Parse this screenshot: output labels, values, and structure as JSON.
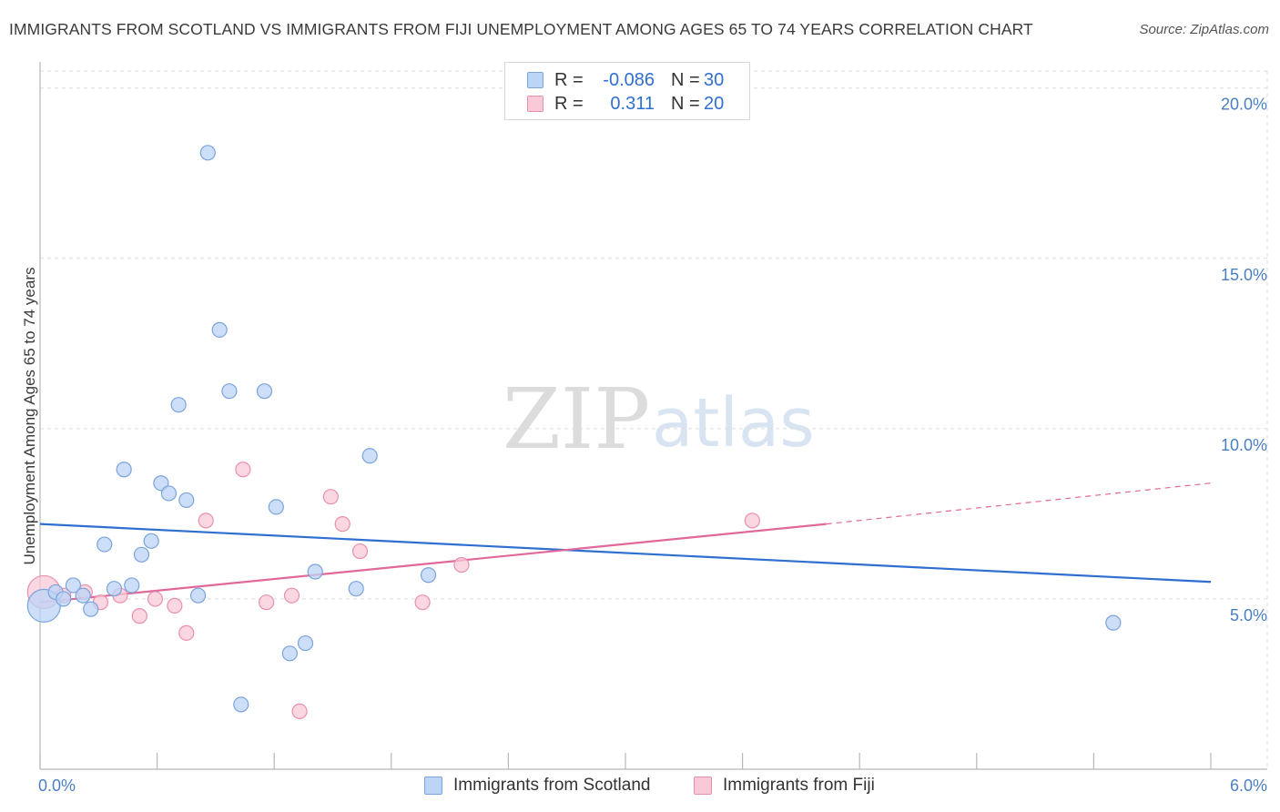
{
  "title": "IMMIGRANTS FROM SCOTLAND VS IMMIGRANTS FROM FIJI UNEMPLOYMENT AMONG AGES 65 TO 74 YEARS CORRELATION CHART",
  "source": "Source: ZipAtlas.com",
  "watermark": {
    "zip": "ZIP",
    "atlas": "atlas"
  },
  "legend": {
    "rows": [
      {
        "r_label": "R =",
        "r_value": "-0.086",
        "n_label": "N =",
        "n_value": "30"
      },
      {
        "r_label": "R =",
        "r_value": "0.311",
        "n_label": "N =",
        "n_value": "20"
      }
    ]
  },
  "bottom_legend": {
    "scotland": "Immigrants from Scotland",
    "fiji": "Immigrants from Fiji"
  },
  "colors": {
    "scotland_fill": "#bcd4f5",
    "scotland_stroke": "#7aa3dc",
    "scotland_line": "#2f6fd0",
    "fiji_fill": "#f9c9d8",
    "fiji_stroke": "#e88fae",
    "fiji_line": "#e0689a",
    "tick_label": "#4a7fc4",
    "grid": "#dcdcdc"
  },
  "chart_data": {
    "type": "scatter",
    "title": "IMMIGRANTS FROM SCOTLAND VS IMMIGRANTS FROM FIJI UNEMPLOYMENT AMONG AGES 65 TO 74 YEARS CORRELATION CHART",
    "xlabel": "",
    "ylabel": "Unemployment Among Ages 65 to 74 years",
    "xlim": [
      0,
      6.0
    ],
    "ylim": [
      0,
      20.5
    ],
    "x_tick_labels": [
      "0.0%",
      "6.0%"
    ],
    "y_ticks": [
      5,
      10,
      15,
      20
    ],
    "y_tick_labels": [
      "5.0%",
      "10.0%",
      "15.0%",
      "20.0%"
    ],
    "series": [
      {
        "name": "Immigrants from Scotland",
        "r": -0.086,
        "n": 30,
        "points": [
          {
            "x": 0.02,
            "y": 4.8,
            "big": true
          },
          {
            "x": 0.08,
            "y": 5.2
          },
          {
            "x": 0.12,
            "y": 5.0
          },
          {
            "x": 0.17,
            "y": 5.4
          },
          {
            "x": 0.22,
            "y": 5.1
          },
          {
            "x": 0.26,
            "y": 4.7
          },
          {
            "x": 0.33,
            "y": 6.6
          },
          {
            "x": 0.38,
            "y": 5.3
          },
          {
            "x": 0.43,
            "y": 8.8
          },
          {
            "x": 0.47,
            "y": 5.4
          },
          {
            "x": 0.52,
            "y": 6.3
          },
          {
            "x": 0.57,
            "y": 6.7
          },
          {
            "x": 0.62,
            "y": 8.4
          },
          {
            "x": 0.66,
            "y": 8.1
          },
          {
            "x": 0.71,
            "y": 10.7
          },
          {
            "x": 0.75,
            "y": 7.9
          },
          {
            "x": 0.81,
            "y": 5.1
          },
          {
            "x": 0.86,
            "y": 18.1
          },
          {
            "x": 0.92,
            "y": 12.9
          },
          {
            "x": 0.97,
            "y": 11.1
          },
          {
            "x": 1.03,
            "y": 1.9
          },
          {
            "x": 1.15,
            "y": 11.1
          },
          {
            "x": 1.21,
            "y": 7.7
          },
          {
            "x": 1.28,
            "y": 3.4
          },
          {
            "x": 1.36,
            "y": 3.7
          },
          {
            "x": 1.41,
            "y": 5.8
          },
          {
            "x": 1.62,
            "y": 5.3
          },
          {
            "x": 1.69,
            "y": 9.2
          },
          {
            "x": 1.99,
            "y": 5.7
          },
          {
            "x": 5.5,
            "y": 4.3
          }
        ],
        "trend": {
          "x0": 0,
          "y0": 7.2,
          "x1": 6.0,
          "y1": 5.5
        }
      },
      {
        "name": "Immigrants from Fiji",
        "r": 0.311,
        "n": 20,
        "points": [
          {
            "x": 0.02,
            "y": 5.2,
            "big": true
          },
          {
            "x": 0.12,
            "y": 5.1
          },
          {
            "x": 0.23,
            "y": 5.2
          },
          {
            "x": 0.31,
            "y": 4.9
          },
          {
            "x": 0.41,
            "y": 5.1
          },
          {
            "x": 0.51,
            "y": 4.5
          },
          {
            "x": 0.59,
            "y": 5.0
          },
          {
            "x": 0.69,
            "y": 4.8
          },
          {
            "x": 0.75,
            "y": 4.0
          },
          {
            "x": 0.85,
            "y": 7.3
          },
          {
            "x": 1.04,
            "y": 8.8
          },
          {
            "x": 1.16,
            "y": 4.9
          },
          {
            "x": 1.29,
            "y": 5.1
          },
          {
            "x": 1.33,
            "y": 1.7
          },
          {
            "x": 1.49,
            "y": 8.0
          },
          {
            "x": 1.55,
            "y": 7.2
          },
          {
            "x": 1.64,
            "y": 6.4
          },
          {
            "x": 1.96,
            "y": 4.9
          },
          {
            "x": 2.16,
            "y": 6.0
          },
          {
            "x": 3.65,
            "y": 7.3
          }
        ],
        "trend": {
          "x0": 0,
          "y0": 4.9,
          "x1": 4.03,
          "y1": 7.2,
          "dash_to_x": 6.0,
          "dash_to_y": 8.4
        }
      }
    ]
  }
}
